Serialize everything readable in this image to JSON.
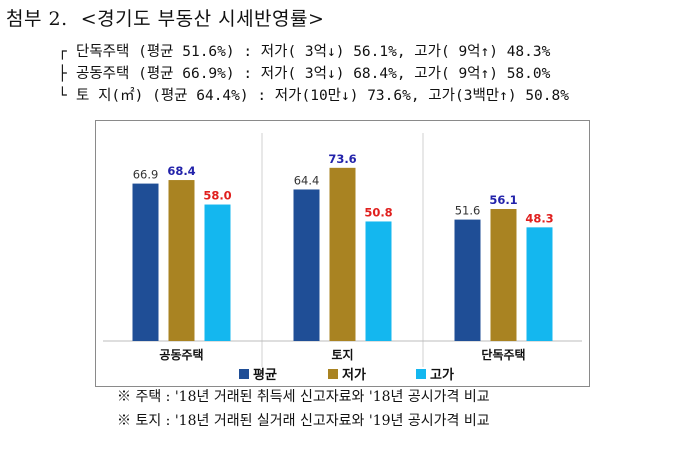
{
  "title": "첨부 2.  <경기도 부동산 시세반영률>",
  "summary": [
    {
      "branch": "┌",
      "text": "단독주택 (평균 51.6%) : 저가( 3억↓) 56.1%, 고가( 9억↑) 48.3%"
    },
    {
      "branch": "├",
      "text": "공동주택 (평균 66.9%) : 저가( 3억↓) 68.4%, 고가( 9억↑) 58.0%"
    },
    {
      "branch": "└",
      "text": "토 지(㎡) (평균 64.4%) : 저가(10만↓) 73.6%, 고가(3백만↑) 50.8%"
    }
  ],
  "chart_data": {
    "type": "bar",
    "categories": [
      "공동주택",
      "토지",
      "단독주택"
    ],
    "series": [
      {
        "name": "평균",
        "values": [
          66.9,
          64.4,
          51.6
        ],
        "color": "#1f4e96",
        "label_color": "#333333"
      },
      {
        "name": "저가",
        "values": [
          68.4,
          73.6,
          56.1
        ],
        "color": "#a98322",
        "label_color": "#2222aa"
      },
      {
        "name": "고가",
        "values": [
          58.0,
          50.8,
          48.3
        ],
        "color": "#14b7ef",
        "label_color": "#e0201e"
      }
    ],
    "value_labels": [
      [
        "66.9",
        "68.4",
        "58.0"
      ],
      [
        "64.4",
        "73.6",
        "50.8"
      ],
      [
        "51.6",
        "56.1",
        "48.3"
      ]
    ],
    "ylim": [
      0,
      85
    ],
    "legend_position": "bottom",
    "grid": false
  },
  "notes": [
    "※ 주택 : '18년 거래된 취득세 신고자료와 '18년 공시가격 비교",
    "※ 토지 : '18년 거래된 실거래 신고자료와 '19년 공시가격 비교"
  ]
}
